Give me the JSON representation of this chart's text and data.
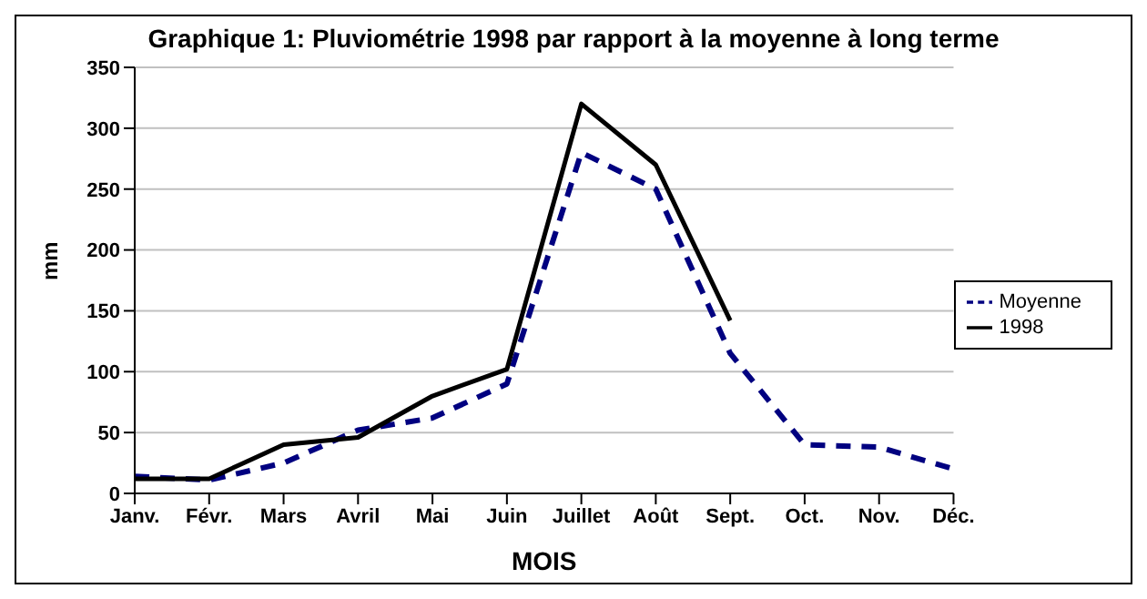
{
  "chart_data": {
    "type": "line",
    "title": "Graphique 1: Pluviométrie 1998 par rapport à la moyenne à long terme",
    "xlabel": "MOIS",
    "ylabel": "mm",
    "categories": [
      "Janv.",
      "Févr.",
      "Mars",
      "Avril",
      "Mai",
      "Juin",
      "Juillet",
      "Août",
      "Sept.",
      "Oct.",
      "Nov.",
      "Déc."
    ],
    "series": [
      {
        "name": "Moyenne",
        "color": "#000080",
        "line_style": "dashed",
        "values": [
          14,
          11,
          25,
          52,
          62,
          90,
          280,
          250,
          115,
          40,
          38,
          20
        ]
      },
      {
        "name": "1998",
        "color": "#000000",
        "line_style": "solid",
        "values": [
          12,
          12,
          40,
          46,
          80,
          102,
          320,
          270,
          142,
          null,
          null,
          null
        ]
      }
    ],
    "ylim": [
      0,
      350
    ],
    "yticks": [
      0,
      50,
      100,
      150,
      200,
      250,
      300,
      350
    ],
    "grid": "y",
    "legend": "right",
    "marker": "none"
  }
}
